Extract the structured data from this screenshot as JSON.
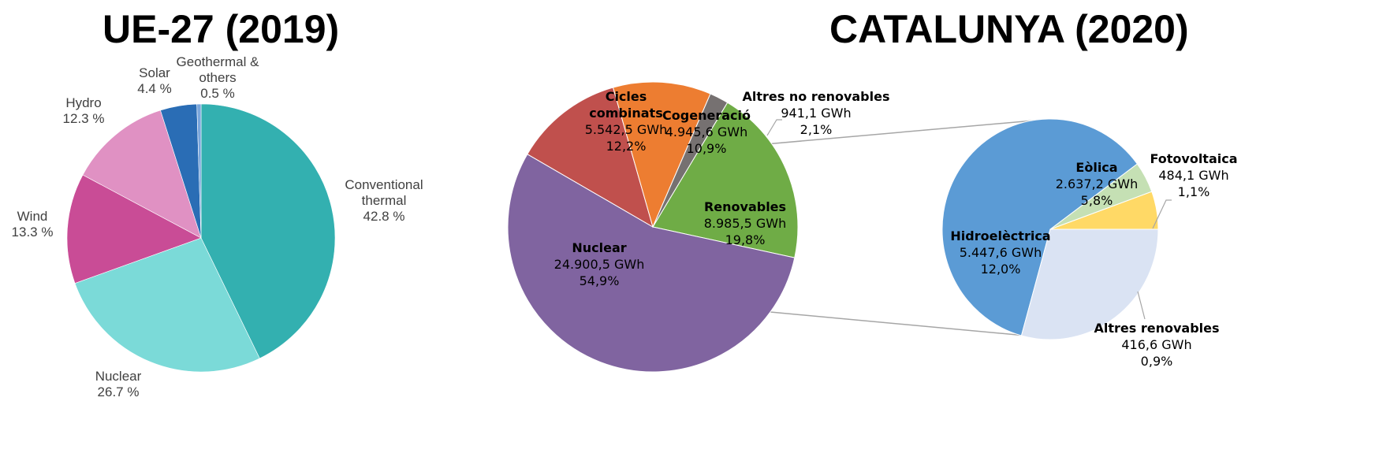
{
  "titles": {
    "left": "UE-27 (2019)",
    "right": "CATALUNYA (2020)"
  },
  "chart_data": [
    {
      "type": "pie",
      "title": "UE-27 (2019)",
      "slices": [
        {
          "name": "Conventional thermal",
          "lines": [
            "Conventional",
            "thermal"
          ],
          "pct_label": "42.8 %",
          "value": 42.8,
          "color": "#33b0b0"
        },
        {
          "name": "Nuclear",
          "lines": [
            "Nuclear"
          ],
          "pct_label": "26.7 %",
          "value": 26.7,
          "color": "#7bdad8"
        },
        {
          "name": "Wind",
          "lines": [
            "Wind"
          ],
          "pct_label": "13.3 %",
          "value": 13.3,
          "color": "#c94c96"
        },
        {
          "name": "Hydro",
          "lines": [
            "Hydro"
          ],
          "pct_label": "12.3 %",
          "value": 12.3,
          "color": "#e091c3"
        },
        {
          "name": "Solar",
          "lines": [
            "Solar"
          ],
          "pct_label": "4.4 %",
          "value": 4.4,
          "color": "#2a6db5"
        },
        {
          "name": "Geothermal & others",
          "lines": [
            "Geothermal &",
            "others"
          ],
          "pct_label": "0.5 %",
          "value": 0.5,
          "color": "#7aa6dc"
        }
      ]
    },
    {
      "type": "pie",
      "title": "CATALUNYA (2020)",
      "slices": [
        {
          "name": "Renovables",
          "lines": [
            "Renovables"
          ],
          "gwh": "8.985,5 GWh",
          "pct_label": "19,8%",
          "value": 19.8,
          "color": "#6fac46"
        },
        {
          "name": "Nuclear",
          "lines": [
            "Nuclear"
          ],
          "gwh": "24.900,5 GWh",
          "pct_label": "54,9%",
          "value": 54.9,
          "color": "#8064a0"
        },
        {
          "name": "Cicles combinats",
          "lines": [
            "Cicles",
            "combinats"
          ],
          "gwh": "5.542,5 GWh",
          "pct_label": "12,2%",
          "value": 12.2,
          "color": "#c0504d"
        },
        {
          "name": "Cogeneració",
          "lines": [
            "Cogeneració"
          ],
          "gwh": "4.945,6 GWh",
          "pct_label": "10,9%",
          "value": 10.9,
          "color": "#ed7d31"
        },
        {
          "name": "Altres no renovables",
          "lines": [
            "Altres no renovables"
          ],
          "gwh": "941,1 GWh",
          "pct_label": "2,1%",
          "value": 2.1,
          "color": "#767171"
        }
      ]
    },
    {
      "type": "pie",
      "title": "",
      "slices": [
        {
          "name": "Fotovoltaica",
          "lines": [
            "Fotovoltaica"
          ],
          "gwh": "484,1 GWh",
          "pct_label": "1,1%",
          "value": 1.1,
          "color": "#ffd966"
        },
        {
          "name": "Altres renovables",
          "lines": [
            "Altres renovables"
          ],
          "gwh": "416,6 GWh",
          "pct_label": "0,9%",
          "value": 0.9,
          "color": "#c5e0b4"
        },
        {
          "name": "Hidroelèctrica",
          "lines": [
            "Hidroelèctrica"
          ],
          "gwh": "5.447,6 GWh",
          "pct_label": "12,0%",
          "value": 12.0,
          "color": "#5b9bd5"
        },
        {
          "name": "Eòlica",
          "lines": [
            "Eòlica"
          ],
          "gwh": "2.637,2 GWh",
          "pct_label": "5,8%",
          "value": 5.8,
          "color": "#dae3f3"
        }
      ]
    }
  ]
}
